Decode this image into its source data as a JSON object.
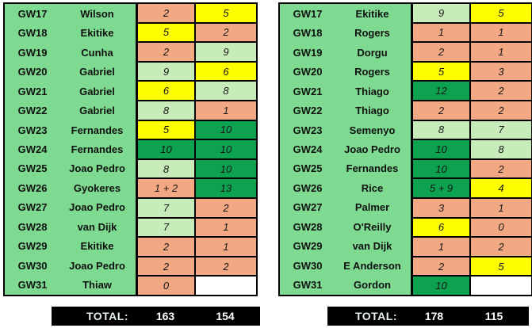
{
  "colors": {
    "panel_green": "#7EDA90",
    "cell_salmon": "#F2A983",
    "cell_yellow": "#FFFF00",
    "cell_light_green": "#C7EBB9",
    "cell_dark_green": "#0CA24F",
    "cell_blank": "#FFFFFF",
    "grid_border": "#000000",
    "total_bar_bg": "#000000",
    "total_label_text": "#E6F4E9",
    "total_value_text": "#FFFFFF"
  },
  "chart_data": {
    "type": "table",
    "tables": [
      {
        "name": "left-table",
        "rows": [
          {
            "gw": "GW17",
            "player": "Wilson",
            "v1": "2",
            "bg1": "salmon",
            "v2": "5",
            "bg2": "yellow"
          },
          {
            "gw": "GW18",
            "player": "Ekitike",
            "v1": "5",
            "bg1": "yellow",
            "v2": "2",
            "bg2": "salmon"
          },
          {
            "gw": "GW19",
            "player": "Cunha",
            "v1": "2",
            "bg1": "salmon",
            "v2": "9",
            "bg2": "lightgreen"
          },
          {
            "gw": "GW20",
            "player": "Gabriel",
            "v1": "9",
            "bg1": "lightgreen",
            "v2": "6",
            "bg2": "yellow"
          },
          {
            "gw": "GW21",
            "player": "Gabriel",
            "v1": "6",
            "bg1": "yellow",
            "v2": "8",
            "bg2": "lightgreen"
          },
          {
            "gw": "GW22",
            "player": "Gabriel",
            "v1": "8",
            "bg1": "lightgreen",
            "v2": "1",
            "bg2": "salmon"
          },
          {
            "gw": "GW23",
            "player": "Fernandes",
            "v1": "5",
            "bg1": "yellow",
            "v2": "10",
            "bg2": "darkgreen"
          },
          {
            "gw": "GW24",
            "player": "Fernandes",
            "v1": "10",
            "bg1": "darkgreen",
            "v2": "10",
            "bg2": "darkgreen"
          },
          {
            "gw": "GW25",
            "player": "Joao Pedro",
            "v1": "8",
            "bg1": "lightgreen",
            "v2": "10",
            "bg2": "darkgreen"
          },
          {
            "gw": "GW26",
            "player": "Gyokeres",
            "v1": "1 + 2",
            "bg1": "salmon",
            "v2": "13",
            "bg2": "darkgreen"
          },
          {
            "gw": "GW27",
            "player": "Joao Pedro",
            "v1": "7",
            "bg1": "lightgreen",
            "v2": "2",
            "bg2": "salmon"
          },
          {
            "gw": "GW28",
            "player": "van Dijk",
            "v1": "7",
            "bg1": "lightgreen",
            "v2": "1",
            "bg2": "salmon"
          },
          {
            "gw": "GW29",
            "player": "Ekitike",
            "v1": "2",
            "bg1": "salmon",
            "v2": "1",
            "bg2": "salmon"
          },
          {
            "gw": "GW30",
            "player": "Joao Pedro",
            "v1": "2",
            "bg1": "salmon",
            "v2": "2",
            "bg2": "salmon"
          },
          {
            "gw": "GW31",
            "player": "Thiaw",
            "v1": "0",
            "bg1": "salmon",
            "v2": "",
            "bg2": "blank"
          }
        ],
        "total": {
          "label": "TOTAL:",
          "v1": "163",
          "v2": "154"
        }
      },
      {
        "name": "right-table",
        "rows": [
          {
            "gw": "GW17",
            "player": "Ekitike",
            "v1": "9",
            "bg1": "lightgreen",
            "v2": "5",
            "bg2": "yellow"
          },
          {
            "gw": "GW18",
            "player": "Rogers",
            "v1": "1",
            "bg1": "salmon",
            "v2": "1",
            "bg2": "salmon"
          },
          {
            "gw": "GW19",
            "player": "Dorgu",
            "v1": "2",
            "bg1": "salmon",
            "v2": "1",
            "bg2": "salmon"
          },
          {
            "gw": "GW20",
            "player": "Rogers",
            "v1": "5",
            "bg1": "yellow",
            "v2": "3",
            "bg2": "salmon"
          },
          {
            "gw": "GW21",
            "player": "Thiago",
            "v1": "12",
            "bg1": "darkgreen",
            "v2": "2",
            "bg2": "salmon"
          },
          {
            "gw": "GW22",
            "player": "Thiago",
            "v1": "2",
            "bg1": "salmon",
            "v2": "2",
            "bg2": "salmon"
          },
          {
            "gw": "GW23",
            "player": "Semenyo",
            "v1": "8",
            "bg1": "lightgreen",
            "v2": "7",
            "bg2": "lightgreen"
          },
          {
            "gw": "GW24",
            "player": "Joao Pedro",
            "v1": "10",
            "bg1": "darkgreen",
            "v2": "8",
            "bg2": "lightgreen"
          },
          {
            "gw": "GW25",
            "player": "Fernandes",
            "v1": "10",
            "bg1": "darkgreen",
            "v2": "2",
            "bg2": "salmon"
          },
          {
            "gw": "GW26",
            "player": "Rice",
            "v1": "5 + 9",
            "bg1": "darkgreen",
            "v2": "4",
            "bg2": "yellow"
          },
          {
            "gw": "GW27",
            "player": "Palmer",
            "v1": "3",
            "bg1": "salmon",
            "v2": "1",
            "bg2": "salmon"
          },
          {
            "gw": "GW28",
            "player": "O'Reilly",
            "v1": "6",
            "bg1": "yellow",
            "v2": "0",
            "bg2": "salmon"
          },
          {
            "gw": "GW29",
            "player": "van Dijk",
            "v1": "1",
            "bg1": "salmon",
            "v2": "2",
            "bg2": "salmon"
          },
          {
            "gw": "GW30",
            "player": "E Anderson",
            "v1": "2",
            "bg1": "salmon",
            "v2": "5",
            "bg2": "yellow"
          },
          {
            "gw": "GW31",
            "player": "Gordon",
            "v1": "10",
            "bg1": "darkgreen",
            "v2": "",
            "bg2": "blank"
          }
        ],
        "total": {
          "label": "TOTAL:",
          "v1": "178",
          "v2": "115"
        }
      }
    ]
  }
}
